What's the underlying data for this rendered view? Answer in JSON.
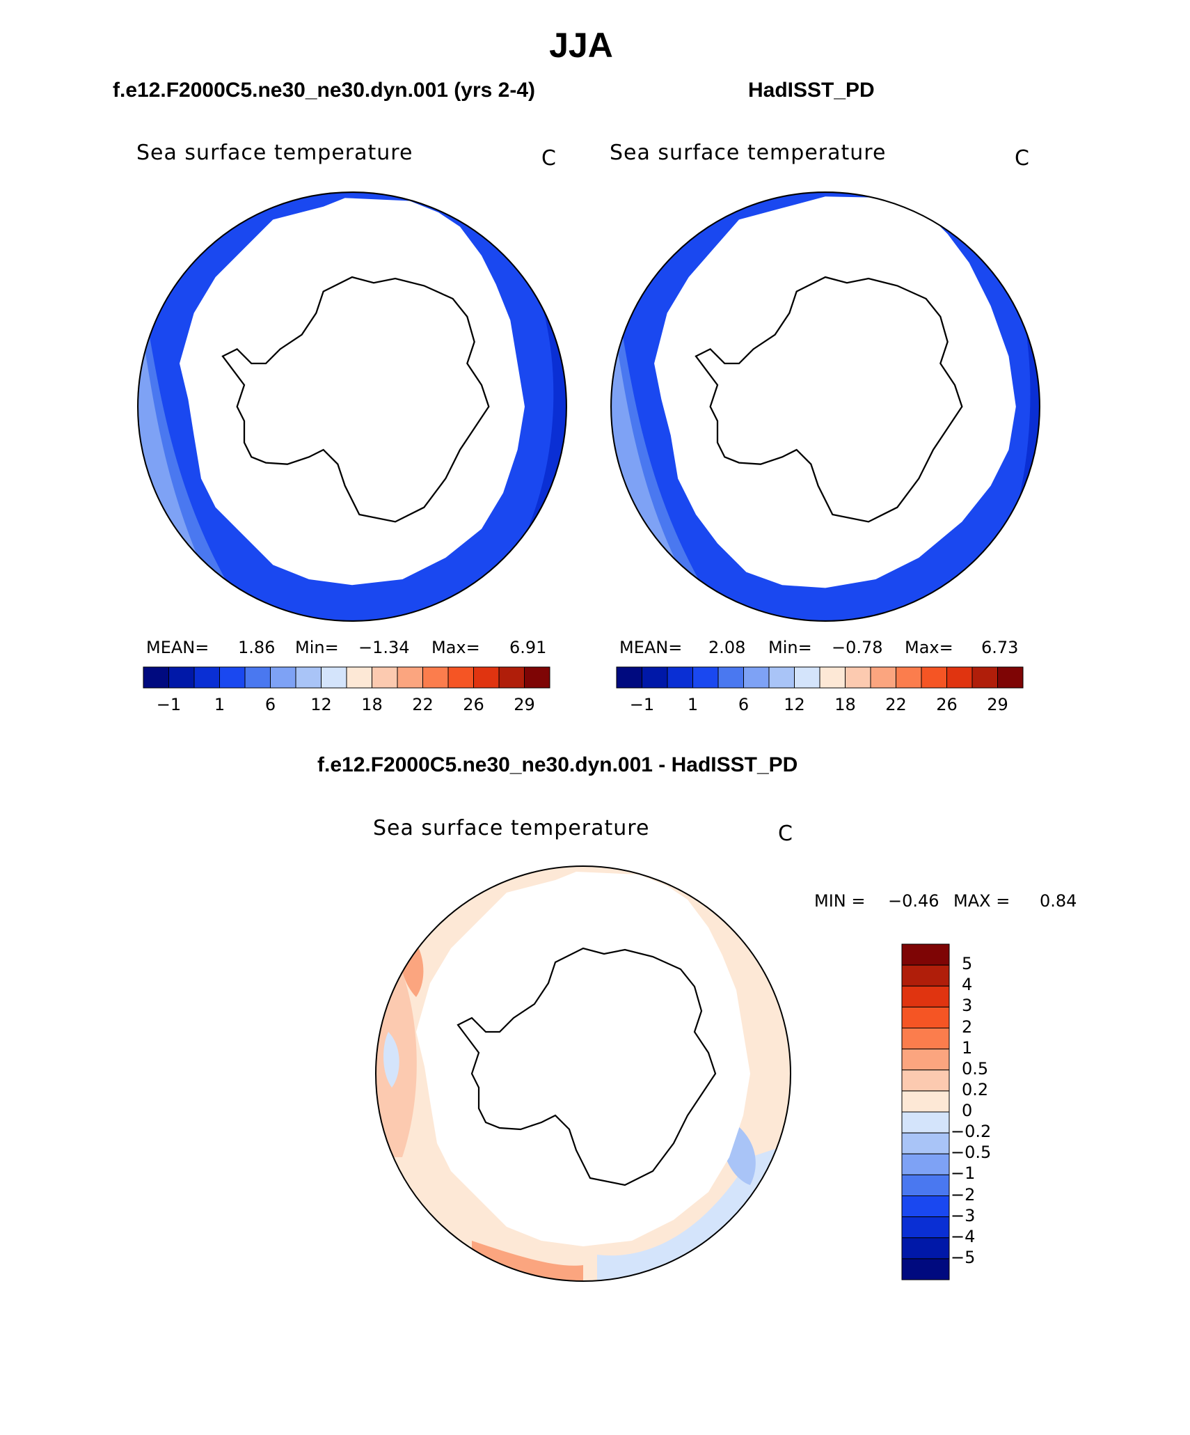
{
  "figure_title": "JJA",
  "panels": [
    {
      "subtitle": "f.e12.F2000C5.ne30_ne30.dyn.001 (yrs 2-4)",
      "variable": "Sea surface temperature",
      "units": "C",
      "stats": {
        "mean_label": "MEAN=",
        "mean": "1.86",
        "min_label": "Min=",
        "min": "−1.34",
        "max_label": "Max=",
        "max": "6.91"
      }
    },
    {
      "subtitle": "HadISST_PD",
      "variable": "Sea surface temperature",
      "units": "C",
      "stats": {
        "mean_label": "MEAN=",
        "mean": "2.08",
        "min_label": "Min=",
        "min": "−0.78",
        "max_label": "Max=",
        "max": "6.73"
      }
    },
    {
      "subtitle": "f.e12.F2000C5.ne30_ne30.dyn.001 - HadISST_PD",
      "variable": "Sea surface temperature",
      "units": "C",
      "stats": {
        "min_label": "MIN =",
        "min": "−0.46",
        "max_label": "MAX =",
        "max": "0.84"
      }
    }
  ],
  "colorbar_sst": {
    "colors": [
      "#000a7f",
      "#0018a8",
      "#0a2fd4",
      "#1a48f0",
      "#4a78f0",
      "#7ea2f5",
      "#a9c4f7",
      "#d4e4fb",
      "#fde8d6",
      "#fccab0",
      "#fba57f",
      "#fb7d4d",
      "#f55524",
      "#e03410",
      "#b01e0a",
      "#7e0505"
    ],
    "tick_labels": [
      "−1",
      "1",
      "6",
      "12",
      "18",
      "22",
      "26",
      "29"
    ]
  },
  "colorbar_diff": {
    "colors": [
      "#7e0505",
      "#b01e0a",
      "#e03410",
      "#f55524",
      "#fb7d4d",
      "#fba57f",
      "#fccab0",
      "#fde8d6",
      "#d4e4fb",
      "#a9c4f7",
      "#7ea2f5",
      "#4a78f0",
      "#1a48f0",
      "#0a2fd4",
      "#0018a8",
      "#000a7f"
    ],
    "tick_labels": [
      "5",
      "4",
      "3",
      "2",
      "1",
      "0.5",
      "0.2",
      "0",
      "−0.2",
      "−0.5",
      "−1",
      "−2",
      "−3",
      "−4",
      "−5"
    ]
  },
  "map_colors": {
    "ocean_warm": "#7ea2f5",
    "ocean_mid": "#4a78f0",
    "ocean_cold": "#1a48f0",
    "ocean_coldest": "#0a2fd4",
    "diff_pos": "#fccab0",
    "diff_pos_strong": "#fba57f",
    "diff_neg": "#d4e4fb",
    "diff_neg_strong": "#a9c4f7"
  }
}
